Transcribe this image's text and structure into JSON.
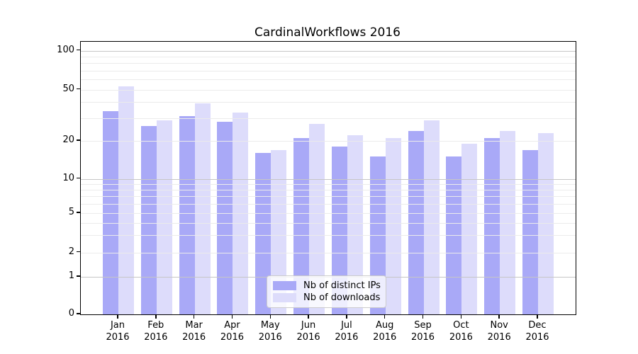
{
  "chart_data": {
    "type": "bar",
    "title": "CardinalWorkflows 2016",
    "categories": [
      "Jan 2016",
      "Feb 2016",
      "Mar 2016",
      "Apr 2016",
      "May 2016",
      "Jun 2016",
      "Jul 2016",
      "Aug 2016",
      "Sep 2016",
      "Oct 2016",
      "Nov 2016",
      "Dec 2016"
    ],
    "x_tick_months": [
      "Jan",
      "Feb",
      "Mar",
      "Apr",
      "May",
      "Jun",
      "Jul",
      "Aug",
      "Sep",
      "Oct",
      "Nov",
      "Dec"
    ],
    "x_tick_year": "2016",
    "series": [
      {
        "name": "Nb of distinct IPs",
        "color": "#a9a9f7",
        "values": [
          34,
          26,
          31,
          28,
          16,
          21,
          18,
          15,
          24,
          15,
          21,
          17
        ]
      },
      {
        "name": "Nb of downloads",
        "color": "#dddcfb",
        "values": [
          53,
          29,
          39,
          33,
          17,
          27,
          22,
          21,
          29,
          19,
          24,
          23
        ]
      }
    ],
    "xlabel": "",
    "ylabel": "",
    "yscale": "symlog",
    "ylim": [
      0,
      115
    ],
    "ytick_labels": [
      "100",
      "50",
      "20",
      "10",
      "5",
      "2",
      "1",
      "0"
    ],
    "yticks": [
      100,
      50,
      20,
      10,
      5,
      2,
      1,
      0
    ],
    "gridlines": {
      "major": [
        1,
        10,
        100
      ],
      "minor": [
        2,
        3,
        4,
        5,
        6,
        7,
        8,
        9,
        20,
        30,
        40,
        50,
        60,
        70,
        80,
        90
      ]
    },
    "grid": "horizontal",
    "legend_position": "lower center",
    "colors": {
      "bar_distinct_ips": "#a9a9f7",
      "bar_downloads": "#dddcfb",
      "grid_minor": "#ebebeb",
      "grid_major": "#c6c6c6",
      "axis": "#000000"
    }
  }
}
